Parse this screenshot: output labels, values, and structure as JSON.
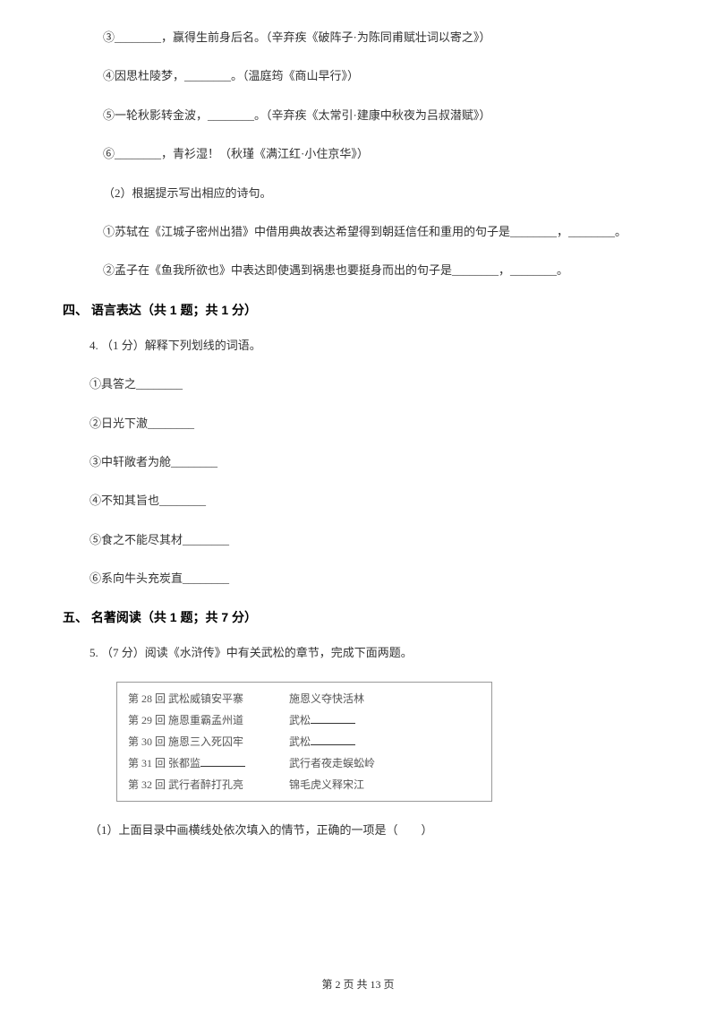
{
  "items": {
    "i3": "③________，赢得生前身后名。（辛弃疾《破阵子·为陈同甫赋壮词以寄之》）",
    "i4": "④因思杜陵梦，________。（温庭筠《商山早行》）",
    "i5": "⑤一轮秋影转金波，________。（辛弃疾《太常引·建康中秋夜为吕叔潜赋》）",
    "i6": "⑥________，青衫湿！（秋瑾《满江红·小住京华》）",
    "p2": "（2）根据提示写出相应的诗句。",
    "p2a": "①苏轼在《江城子密州出猎》中借用典故表达希望得到朝廷信任和重用的句子是________，________。",
    "p2b": "②孟子在《鱼我所欲也》中表达即使遇到祸患也要挺身而出的句子是________，________。"
  },
  "section4": {
    "title": "四、 语言表达（共 1 题；共 1 分）",
    "q4": "4. （1 分）解释下列划线的词语。",
    "s1": "①具答之________",
    "s2": "②日光下澈________",
    "s3": "③中轩敞者为舱________",
    "s4": "④不知其旨也________",
    "s5": "⑤食之不能尽其材________",
    "s6": "⑥系向牛头充炭直________"
  },
  "section5": {
    "title": "五、 名著阅读（共 1 题；共 7 分）",
    "q5": "5. （7 分）阅读《水浒传》中有关武松的章节，完成下面两题。",
    "table": {
      "rows": [
        {
          "c1": "第 28 回  武松威镇安平寨",
          "c2": "施恩义夺快活林"
        },
        {
          "c1": "第 29 回  施恩重霸孟州道",
          "c2_prefix": "武松"
        },
        {
          "c1": "第 30 回  施恩三入死囚牢",
          "c2_prefix": "武松"
        },
        {
          "c1_prefix": "第 31 回  张都监",
          "c2": "武行者夜走蜈蚣岭"
        },
        {
          "c1": "第 32 回  武行者醉打孔亮",
          "c2": "锦毛虎义释宋江"
        }
      ]
    },
    "q5_1": "（1）上面目录中画横线处依次填入的情节，正确的一项是（　　）"
  },
  "footer": "第 2 页 共 13 页"
}
